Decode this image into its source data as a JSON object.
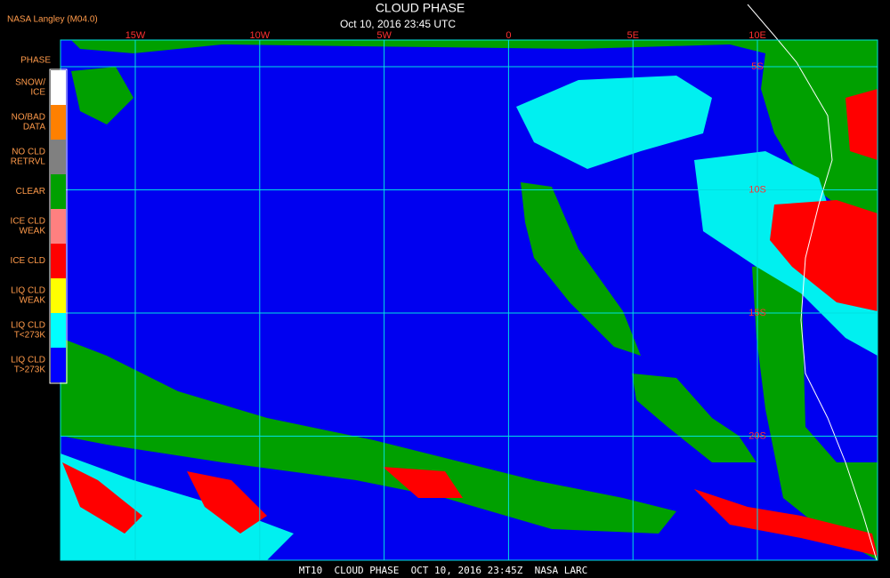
{
  "header": {
    "source": "NASA Langley (M04.0)",
    "title": "CLOUD PHASE",
    "subtitle": "Oct 10, 2016 23:45 UTC"
  },
  "longitude_labels": [
    "15W",
    "10W",
    "5W",
    "0",
    "5E",
    "10E"
  ],
  "latitude_labels": [
    "5S",
    "10S",
    "15S",
    "20S"
  ],
  "legend": {
    "title": "PHASE",
    "items": [
      {
        "lines": [
          "SNOW/",
          "ICE"
        ],
        "color": "#ffffff"
      },
      {
        "lines": [
          "NO/BAD",
          "DATA"
        ],
        "color": "#ff8000"
      },
      {
        "lines": [
          "NO CLD",
          "RETRVL"
        ],
        "color": "#808080"
      },
      {
        "lines": [
          "CLEAR"
        ],
        "color": "#00a000"
      },
      {
        "lines": [
          "ICE CLD",
          "WEAK"
        ],
        "color": "#ff8080"
      },
      {
        "lines": [
          "ICE CLD"
        ],
        "color": "#ff0000"
      },
      {
        "lines": [
          "LIQ CLD",
          "WEAK"
        ],
        "color": "#ffff00"
      },
      {
        "lines": [
          "LIQ CLD",
          "T<273K"
        ],
        "color": "#00ffff"
      },
      {
        "lines": [
          "LIQ CLD",
          "T>273K"
        ],
        "color": "#0000ff"
      }
    ]
  },
  "footer": "MT10  CLOUD PHASE  OCT 10, 2016 23:45Z  NASA LARC"
}
